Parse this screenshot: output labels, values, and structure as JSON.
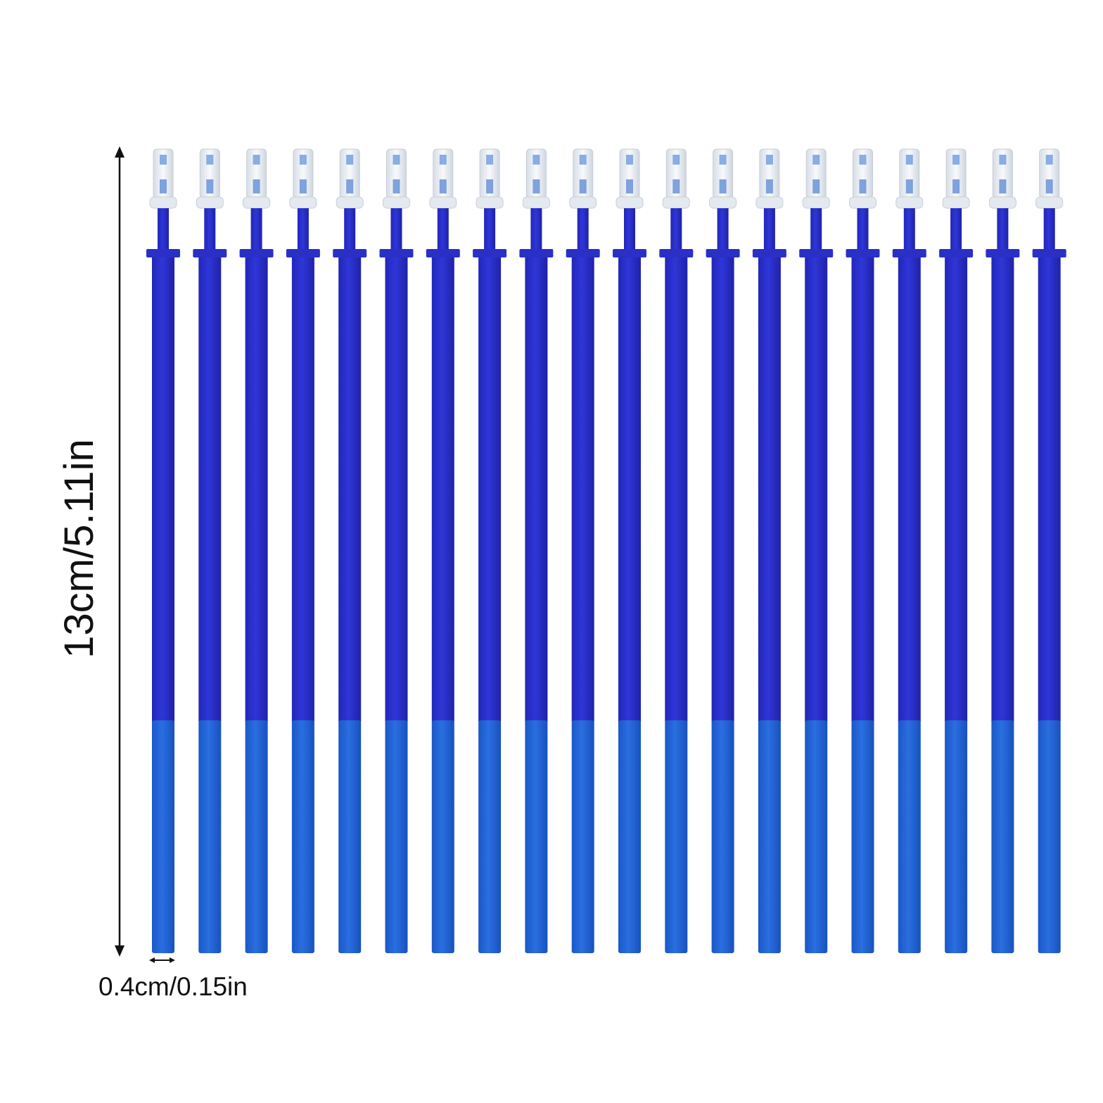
{
  "dimensions": {
    "length_label": "13cm/5.11in",
    "width_label": "0.4cm/0.15in"
  }
}
